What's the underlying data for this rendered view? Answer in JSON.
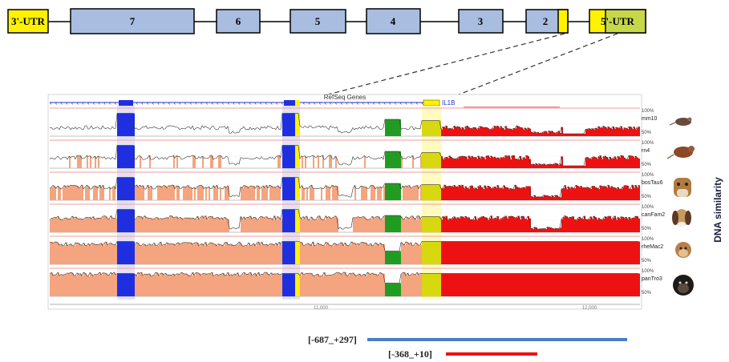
{
  "gene_structure": {
    "elements": [
      {
        "label": "3'-UTR",
        "kind": "utr"
      },
      {
        "label": "7",
        "kind": "exon"
      },
      {
        "label": "6",
        "kind": "exon"
      },
      {
        "label": "5",
        "kind": "exon"
      },
      {
        "label": "4",
        "kind": "exon"
      },
      {
        "label": "3",
        "kind": "exon"
      },
      {
        "label": "2",
        "kind": "exon"
      },
      {
        "label": "5'-UTR",
        "kind": "utr"
      }
    ]
  },
  "browser": {
    "track_title": "RefSeq Genes",
    "gene_label": "IL1B",
    "pct_top": "100%",
    "pct_mid": "50%",
    "ruler_labels": [
      "11,000",
      "12,000"
    ],
    "species": [
      {
        "db": "mm10",
        "animal": "mouse-icon"
      },
      {
        "db": "rn4",
        "animal": "rat-icon"
      },
      {
        "db": "bosTau6",
        "animal": "cow-icon"
      },
      {
        "db": "canFam2",
        "animal": "dog-icon"
      },
      {
        "db": "rheMac2",
        "animal": "monkey-icon"
      },
      {
        "db": "panTro3",
        "animal": "chimpanzee-icon"
      }
    ]
  },
  "side_label": "DNA similarity",
  "regions": [
    {
      "label": "[-687_+297]",
      "color": "#4a7ec4"
    },
    {
      "label": "[-368_+10]",
      "color": "#ee1111"
    }
  ],
  "colors": {
    "exon_fill": "#a9bde0",
    "utr_fill": "#fef200",
    "utr5_fill": "#c6d84a",
    "conserved_intron": "#f4a47e",
    "conserved_utr": "#ee1111",
    "conserved_exon": "#1f2fe0",
    "conserved_noncoding": "#229b22",
    "conserved_highlight": "#d8d810"
  }
}
